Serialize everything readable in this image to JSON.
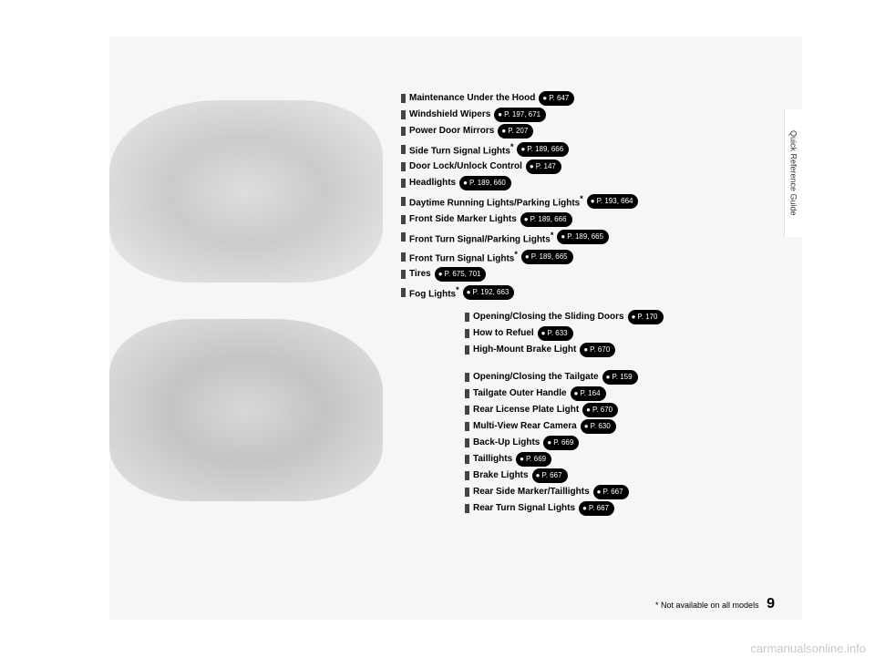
{
  "side_tab": "Quick Reference Guide",
  "front": {
    "items": [
      {
        "label": "Maintenance Under the Hood",
        "pages": "P. 647",
        "asterisk": false
      },
      {
        "label": "Windshield Wipers",
        "pages": "P. 197, 671",
        "asterisk": false
      },
      {
        "label": "Power Door Mirrors",
        "pages": "P. 207",
        "asterisk": false
      },
      {
        "label": "Side Turn Signal Lights",
        "pages": "P. 189, 666",
        "asterisk": true
      },
      {
        "label": "Door Lock/Unlock Control",
        "pages": "P. 147",
        "asterisk": false
      },
      {
        "label": "Headlights",
        "pages": "P. 189, 660",
        "asterisk": false
      },
      {
        "label": "Daytime Running Lights/Parking Lights",
        "pages": "P. 193, 664",
        "asterisk": true
      },
      {
        "label": "Front Side Marker Lights",
        "pages": "P. 189, 666",
        "asterisk": false
      },
      {
        "label": "Front Turn Signal/Parking Lights",
        "pages": "P. 189, 665",
        "asterisk": true
      },
      {
        "label": "Front Turn Signal Lights",
        "pages": "P. 189, 665",
        "asterisk": true
      },
      {
        "label": "Tires",
        "pages": "P. 675, 701",
        "asterisk": false
      },
      {
        "label": "Fog Lights",
        "pages": "P. 192, 663",
        "asterisk": true
      }
    ]
  },
  "rear": {
    "items": [
      {
        "label": "Opening/Closing the Sliding Doors",
        "pages": "P. 170",
        "asterisk": false
      },
      {
        "label": "How to Refuel",
        "pages": "P. 633",
        "asterisk": false
      },
      {
        "label": "High-Mount Brake Light",
        "pages": "P. 670",
        "asterisk": false
      },
      {
        "label": "Opening/Closing the Tailgate",
        "pages": "P. 159",
        "asterisk": false,
        "gap": true
      },
      {
        "label": "Tailgate Outer Handle",
        "pages": "P. 164",
        "asterisk": false
      },
      {
        "label": "Rear License Plate Light",
        "pages": "P. 670",
        "asterisk": false
      },
      {
        "label": "Multi-View Rear Camera",
        "pages": "P. 630",
        "asterisk": false
      },
      {
        "label": "Back-Up Lights",
        "pages": "P. 669",
        "asterisk": false
      },
      {
        "label": "Taillights",
        "pages": "P. 669",
        "asterisk": false
      },
      {
        "label": "Brake Lights",
        "pages": "P. 667",
        "asterisk": false
      },
      {
        "label": "Rear Side Marker/Taillights",
        "pages": "P. 667",
        "asterisk": false
      },
      {
        "label": "Rear Turn Signal Lights",
        "pages": "P. 667",
        "asterisk": false
      }
    ]
  },
  "footnote_text": "* Not available on all models",
  "page_number": "9",
  "watermark": "carmanualsonline.info"
}
